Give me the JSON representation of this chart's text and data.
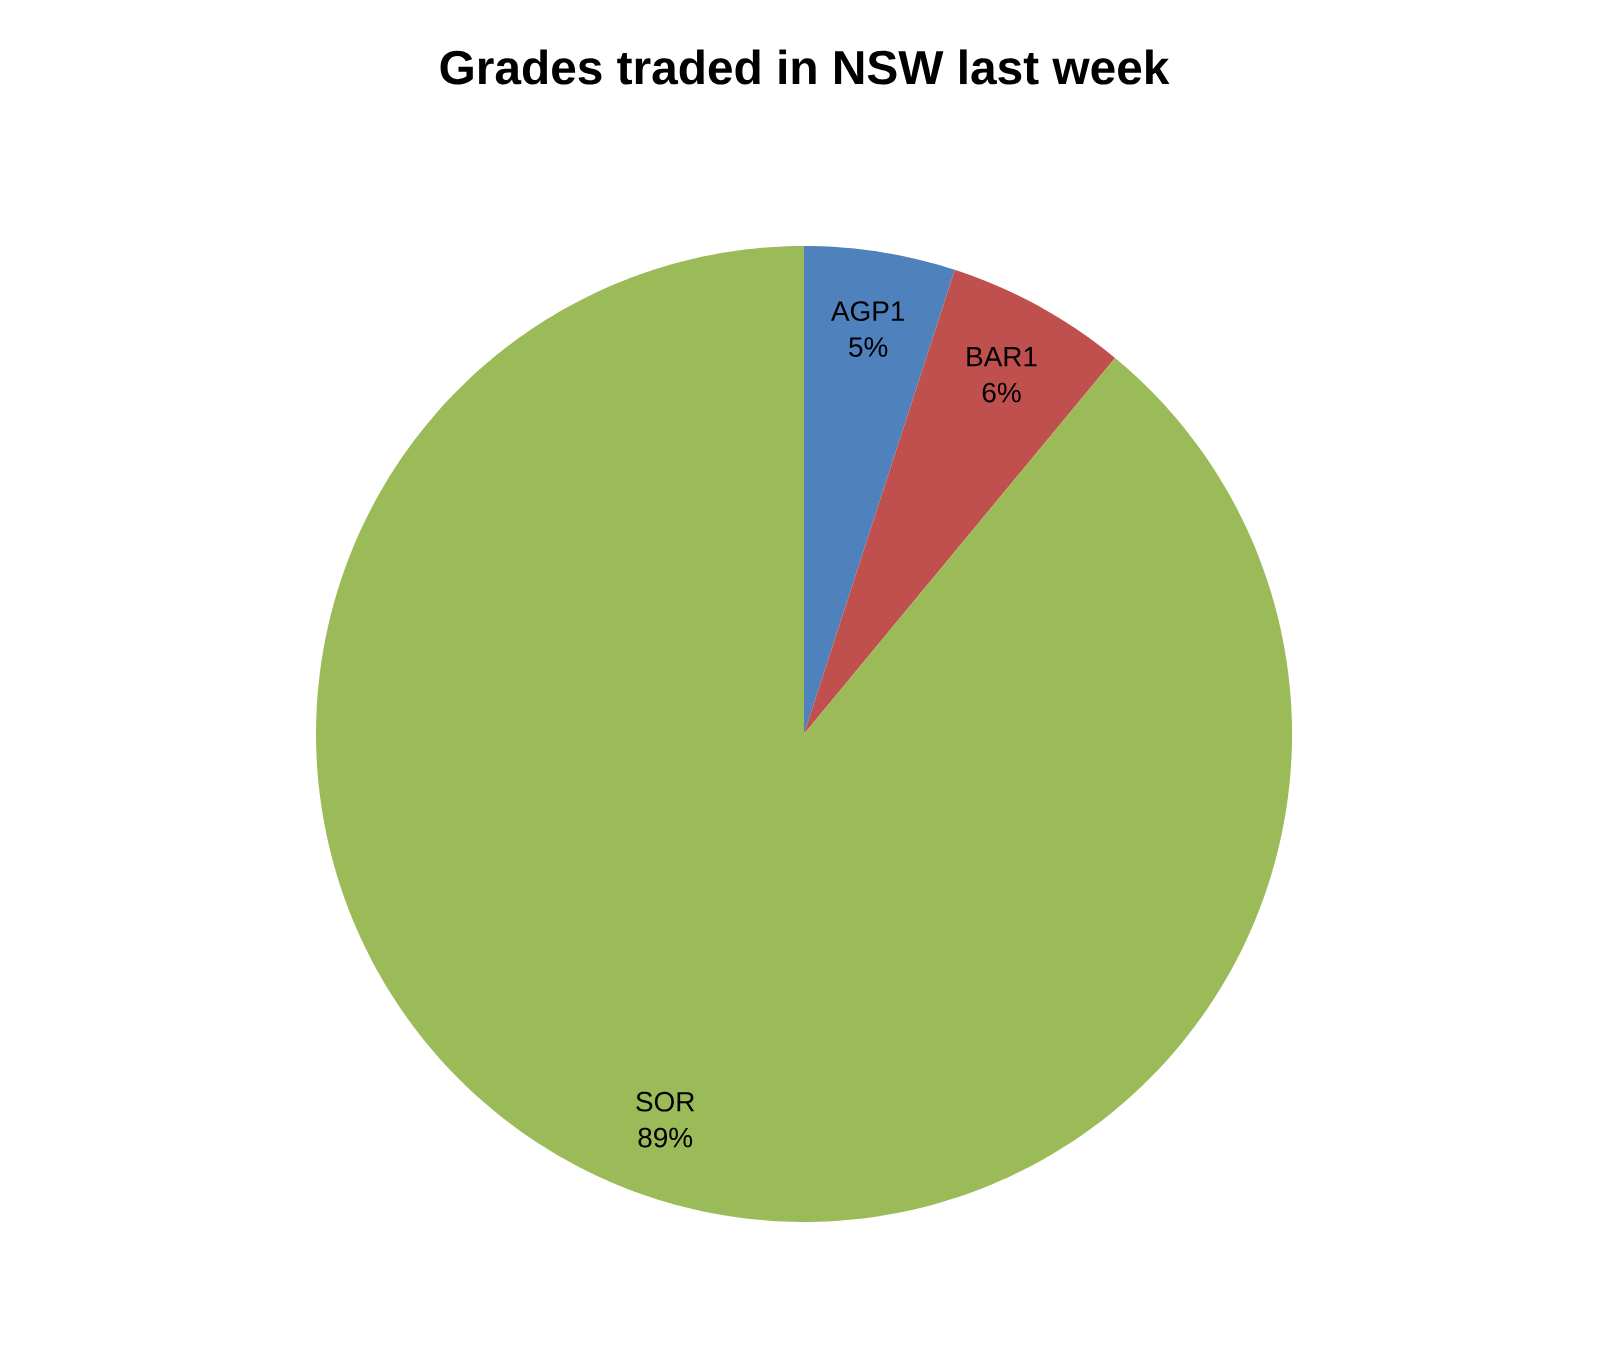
{
  "chart_data": {
    "type": "pie",
    "title": "Grades traded in NSW last week",
    "categories": [
      "AGP1",
      "BAR1",
      "SOR"
    ],
    "values": [
      5,
      6,
      89
    ],
    "value_labels": [
      "5%",
      "6%",
      "89%"
    ],
    "colors": [
      "#4f81bd",
      "#c0504d",
      "#9bbb59"
    ]
  }
}
